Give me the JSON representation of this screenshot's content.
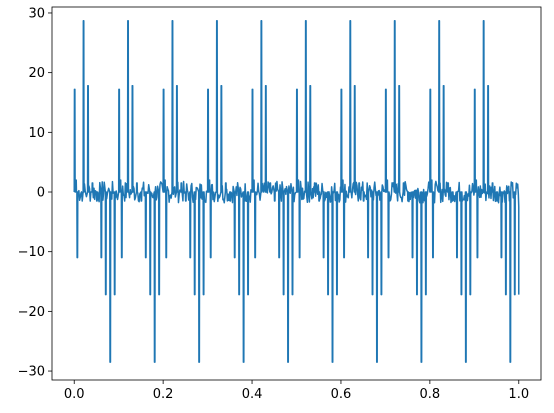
{
  "chart_data": {
    "type": "line",
    "title": "",
    "xlabel": "",
    "ylabel": "",
    "xlim": [
      -0.05,
      1.05
    ],
    "ylim": [
      -31.5,
      31.0
    ],
    "grid": false,
    "x_ticks": [
      0.0,
      0.2,
      0.4,
      0.6,
      0.8,
      1.0
    ],
    "x_tick_labels": [
      "0.0",
      "0.2",
      "0.4",
      "0.6",
      "0.8",
      "1.0"
    ],
    "y_ticks": [
      -30,
      -20,
      -10,
      0,
      10,
      20,
      30
    ],
    "y_tick_labels": [
      "−30",
      "−20",
      "−10",
      "0",
      "10",
      "20",
      "30"
    ],
    "series": [
      {
        "color": "#1f77b4",
        "x_range": [
          0,
          1
        ],
        "period": 0.1,
        "repeats": 10,
        "segment_features": [
          {
            "x_offset": 0.0,
            "value": 17.2
          },
          {
            "x_offset": 0.003,
            "value": 2.0
          },
          {
            "x_offset": 0.006,
            "value": -11.0
          },
          {
            "x_offset": 0.02,
            "value": 28.7
          },
          {
            "x_offset": 0.03,
            "value": 17.8
          },
          {
            "x_offset": 0.04,
            "value": 1.5
          },
          {
            "x_offset": 0.05,
            "value": -1.5
          },
          {
            "x_offset": 0.06,
            "value": -11.0
          },
          {
            "x_offset": 0.07,
            "value": -17.2
          },
          {
            "x_offset": 0.08,
            "value": -28.5
          },
          {
            "x_offset": 0.09,
            "value": -17.2
          }
        ],
        "baseline_oscillation": 1.8
      }
    ]
  }
}
